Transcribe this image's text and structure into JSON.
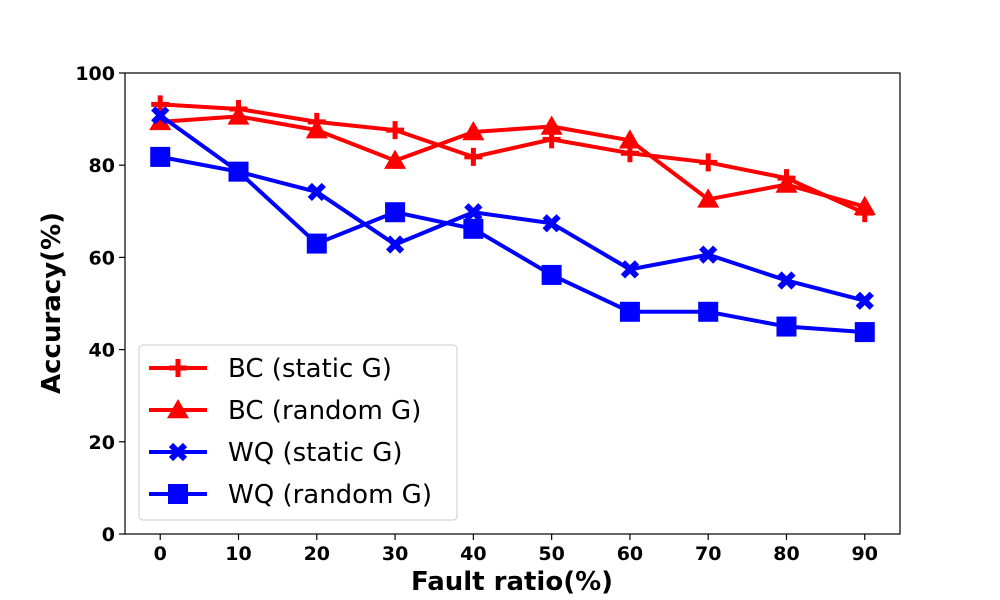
{
  "chart_data": {
    "type": "line",
    "title": "",
    "xlabel": "Fault ratio(%)",
    "ylabel": "Accuracy(%)",
    "x": [
      0,
      10,
      20,
      30,
      40,
      50,
      60,
      70,
      80,
      90
    ],
    "xticks": [
      0,
      10,
      20,
      30,
      40,
      50,
      60,
      70,
      80,
      90
    ],
    "xlim": [
      -4.5,
      94.5
    ],
    "yticks": [
      0,
      20,
      40,
      60,
      80,
      100
    ],
    "ylim": [
      0,
      100
    ],
    "grid": false,
    "legend_position": "lower-left",
    "series": [
      {
        "name": "BC (static G)",
        "color": "#ff0000",
        "marker": "plus",
        "values": [
          93.2,
          92.2,
          89.4,
          87.6,
          81.8,
          85.6,
          82.6,
          80.6,
          77.2,
          69.6
        ]
      },
      {
        "name": "BC (random G)",
        "color": "#ff0000",
        "marker": "triangle",
        "values": [
          89.4,
          90.6,
          87.6,
          81.0,
          87.2,
          88.4,
          85.4,
          72.6,
          75.8,
          71.0
        ]
      },
      {
        "name": "WQ (static G)",
        "color": "#0000ff",
        "marker": "x",
        "values": [
          90.8,
          78.6,
          74.2,
          62.8,
          69.8,
          67.4,
          57.4,
          60.6,
          55.0,
          50.6
        ]
      },
      {
        "name": "WQ (random G)",
        "color": "#0000ff",
        "marker": "square",
        "values": [
          81.8,
          78.6,
          63.0,
          69.8,
          66.2,
          56.2,
          48.2,
          48.2,
          45.0,
          43.8
        ]
      }
    ]
  }
}
